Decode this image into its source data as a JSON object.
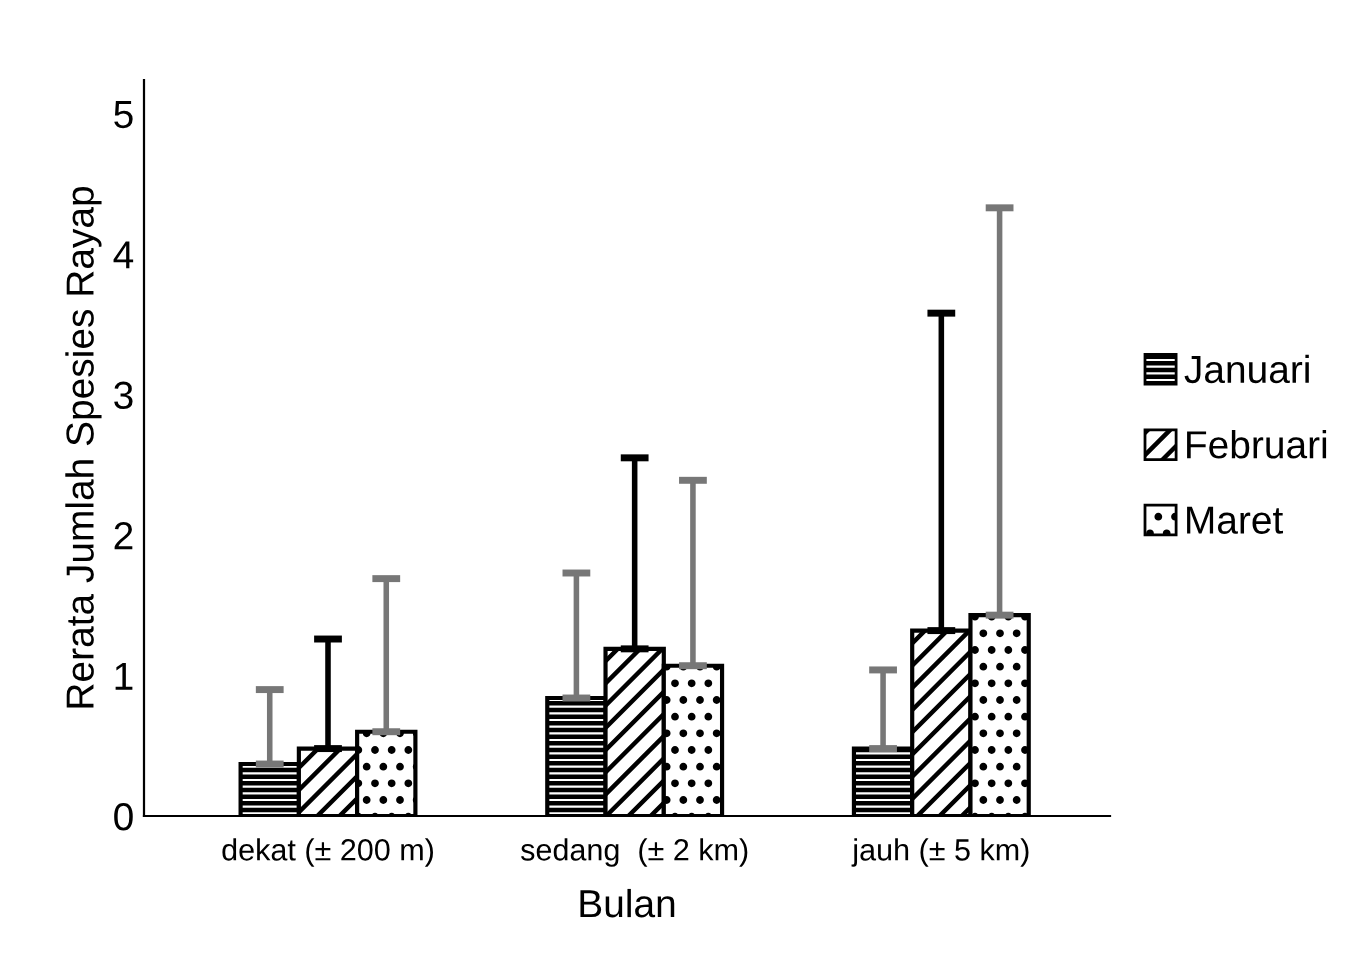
{
  "chart_data": {
    "type": "bar",
    "xlabel": "Bulan",
    "ylabel": "Rerata Jumlah Spesies Rayap",
    "categories": [
      "dekat (± 200 m)",
      "sedang  (± 2 km)",
      "jauh (± 5 km)"
    ],
    "series": [
      {
        "name": "Januari",
        "color": "#000000",
        "values": [
          0.37,
          0.84,
          0.48
        ],
        "errors": [
          [
            0.37,
            0.9
          ],
          [
            0.84,
            1.73
          ],
          [
            0.48,
            1.04
          ]
        ]
      },
      {
        "name": "Februari",
        "color": "#000000",
        "values": [
          0.48,
          1.19,
          1.32
        ],
        "errors": [
          [
            0.48,
            1.26
          ],
          [
            1.19,
            2.55
          ],
          [
            1.32,
            3.58
          ]
        ]
      },
      {
        "name": "Maret",
        "color": "#000000",
        "values": [
          0.6,
          1.07,
          1.43
        ],
        "errors": [
          [
            0.6,
            1.69
          ],
          [
            1.07,
            2.39
          ],
          [
            1.43,
            4.33
          ]
        ]
      }
    ],
    "ylim": [
      0,
      5.24
    ],
    "yticks": [
      0,
      1,
      2,
      3,
      4,
      5
    ],
    "legend": "right",
    "grid": false
  }
}
